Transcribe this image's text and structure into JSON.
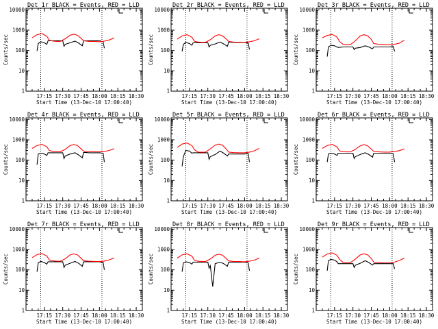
{
  "x_tick_labels": [
    "17:15",
    "17:30",
    "17:45",
    "18:00",
    "18:15",
    "18:30"
  ],
  "y_tick_labels": [
    "1",
    "10",
    "100",
    "1000",
    "10000"
  ],
  "ylabel": "Counts/sec",
  "xlabel": "Start Time (13-Dec-10 17:00:40)",
  "colors": {
    "events": "#000000",
    "lld": "#ff0000",
    "marker": "#000000"
  },
  "chart_data": [
    {
      "type": "line",
      "title": "Det 1r BLACK = Events, RED = LLD",
      "ylim": [
        1,
        12000
      ],
      "yscale": "log",
      "grid": false,
      "x_minutes": [
        0,
        75
      ],
      "series": [
        {
          "color": "#000000",
          "x": [
            4,
            5,
            7,
            10,
            12,
            13,
            17,
            20,
            25,
            26,
            27,
            31,
            35,
            38,
            41,
            42,
            43,
            47,
            51,
            55,
            58,
            59
          ],
          "y": [
            95,
            220,
            270,
            240,
            200,
            300,
            300,
            300,
            300,
            160,
            200,
            240,
            290,
            230,
            170,
            300,
            300,
            300,
            300,
            300,
            270,
            130
          ]
        },
        {
          "color": "#ff0000",
          "x": [
            0,
            4,
            8,
            12,
            14,
            17,
            20,
            23,
            27,
            31,
            34,
            37,
            40,
            42,
            46,
            51,
            55,
            59,
            63,
            67
          ],
          "y": [
            420,
            600,
            680,
            500,
            320,
            290,
            280,
            280,
            380,
            560,
            640,
            560,
            400,
            300,
            280,
            280,
            270,
            290,
            330,
            420
          ]
        }
      ],
      "markers_x": [
        7,
        57
      ]
    },
    {
      "type": "line",
      "title": "Det 2r BLACK = Events, RED = LLD",
      "ylim": [
        1,
        12000
      ],
      "yscale": "log",
      "grid": false,
      "x_minutes": [
        0,
        75
      ],
      "series": [
        {
          "color": "#000000",
          "x": [
            4,
            5,
            7,
            10,
            12,
            13,
            17,
            20,
            25,
            26,
            27,
            31,
            35,
            38,
            41,
            42,
            43,
            47,
            51,
            55,
            58,
            59
          ],
          "y": [
            90,
            200,
            250,
            220,
            180,
            240,
            240,
            240,
            240,
            150,
            180,
            210,
            260,
            210,
            160,
            260,
            260,
            250,
            250,
            250,
            230,
            110
          ]
        },
        {
          "color": "#ff0000",
          "x": [
            0,
            4,
            8,
            12,
            14,
            17,
            20,
            23,
            27,
            31,
            34,
            37,
            40,
            42,
            46,
            51,
            55,
            59,
            63,
            67
          ],
          "y": [
            360,
            520,
            600,
            450,
            290,
            260,
            250,
            250,
            340,
            520,
            600,
            520,
            370,
            280,
            260,
            255,
            250,
            270,
            300,
            380
          ]
        }
      ],
      "markers_x": [
        7,
        57
      ]
    },
    {
      "type": "line",
      "title": "Det 3r BLACK = Events, RED = LLD",
      "ylim": [
        1,
        12000
      ],
      "yscale": "log",
      "grid": false,
      "x_minutes": [
        0,
        75
      ],
      "series": [
        {
          "color": "#000000",
          "x": [
            4,
            5,
            7,
            10,
            12,
            13,
            17,
            20,
            25,
            26,
            27,
            31,
            35,
            38,
            41,
            42,
            43,
            47,
            51,
            55,
            58,
            59
          ],
          "y": [
            50,
            150,
            180,
            170,
            150,
            140,
            150,
            150,
            150,
            110,
            130,
            140,
            170,
            150,
            120,
            150,
            150,
            150,
            150,
            150,
            160,
            90
          ]
        },
        {
          "color": "#ff0000",
          "x": [
            0,
            4,
            8,
            12,
            14,
            17,
            20,
            23,
            27,
            31,
            34,
            37,
            40,
            42,
            46,
            51,
            55,
            59,
            63,
            67
          ],
          "y": [
            420,
            550,
            620,
            460,
            280,
            200,
            195,
            195,
            300,
            520,
            600,
            520,
            350,
            220,
            200,
            195,
            190,
            200,
            230,
            320
          ]
        }
      ],
      "markers_x": [
        7,
        57
      ]
    },
    {
      "type": "line",
      "title": "Det 4r BLACK = Events, RED = LLD",
      "ylim": [
        1,
        12000
      ],
      "yscale": "log",
      "grid": false,
      "x_minutes": [
        0,
        75
      ],
      "series": [
        {
          "color": "#000000",
          "x": [
            4,
            5,
            7,
            10,
            12,
            13,
            17,
            20,
            25,
            26,
            27,
            31,
            35,
            38,
            41,
            42,
            43,
            47,
            51,
            55,
            58,
            59
          ],
          "y": [
            60,
            200,
            220,
            200,
            170,
            230,
            230,
            230,
            230,
            120,
            160,
            200,
            230,
            180,
            130,
            240,
            240,
            230,
            230,
            230,
            220,
            80
          ]
        },
        {
          "color": "#ff0000",
          "x": [
            0,
            4,
            8,
            12,
            14,
            17,
            20,
            23,
            27,
            31,
            34,
            37,
            40,
            42,
            46,
            51,
            55,
            59,
            63,
            67
          ],
          "y": [
            380,
            520,
            600,
            460,
            300,
            270,
            260,
            260,
            340,
            520,
            590,
            520,
            360,
            280,
            265,
            260,
            255,
            270,
            300,
            370
          ]
        }
      ],
      "markers_x": [
        7,
        57
      ]
    },
    {
      "type": "line",
      "title": "Det 5r BLACK = Events, RED = LLD",
      "ylim": [
        1,
        12000
      ],
      "yscale": "log",
      "grid": false,
      "x_minutes": [
        0,
        75
      ],
      "series": [
        {
          "color": "#000000",
          "x": [
            4,
            5,
            7,
            10,
            12,
            13,
            17,
            20,
            25,
            26,
            27,
            31,
            35,
            38,
            41,
            42,
            43,
            47,
            51,
            55,
            58,
            59
          ],
          "y": [
            50,
            150,
            300,
            280,
            220,
            230,
            230,
            230,
            230,
            110,
            150,
            190,
            280,
            220,
            160,
            200,
            200,
            200,
            200,
            200,
            210,
            80
          ]
        },
        {
          "color": "#ff0000",
          "x": [
            0,
            4,
            8,
            12,
            14,
            17,
            20,
            23,
            27,
            31,
            34,
            37,
            40,
            42,
            46,
            51,
            55,
            59,
            63,
            67
          ],
          "y": [
            420,
            620,
            700,
            520,
            330,
            250,
            245,
            245,
            360,
            550,
            620,
            540,
            360,
            250,
            235,
            230,
            230,
            250,
            290,
            380
          ]
        }
      ],
      "markers_x": [
        7,
        57
      ]
    },
    {
      "type": "line",
      "title": "Det 6r BLACK = Events, RED = LLD",
      "ylim": [
        1,
        12000
      ],
      "yscale": "log",
      "grid": false,
      "x_minutes": [
        0,
        75
      ],
      "series": [
        {
          "color": "#000000",
          "x": [
            4,
            5,
            7,
            10,
            12,
            13,
            17,
            20,
            25,
            26,
            27,
            31,
            35,
            38,
            41,
            42,
            43,
            47,
            51,
            55,
            58,
            59
          ],
          "y": [
            80,
            200,
            220,
            200,
            170,
            220,
            220,
            220,
            220,
            120,
            150,
            190,
            230,
            190,
            140,
            220,
            220,
            220,
            220,
            220,
            210,
            80
          ]
        },
        {
          "color": "#ff0000",
          "x": [
            0,
            4,
            8,
            12,
            14,
            17,
            20,
            23,
            27,
            31,
            34,
            37,
            40,
            42,
            46,
            51,
            55,
            59,
            63,
            67
          ],
          "y": [
            380,
            520,
            600,
            450,
            290,
            260,
            255,
            255,
            340,
            510,
            580,
            510,
            350,
            270,
            255,
            250,
            250,
            265,
            295,
            360
          ]
        }
      ],
      "markers_x": [
        7,
        57
      ]
    },
    {
      "type": "line",
      "title": "Det 7r BLACK = Events, RED = LLD",
      "ylim": [
        1,
        12000
      ],
      "yscale": "log",
      "grid": false,
      "x_minutes": [
        0,
        75
      ],
      "series": [
        {
          "color": "#000000",
          "x": [
            4,
            5,
            7,
            10,
            12,
            13,
            17,
            20,
            25,
            26,
            27,
            31,
            35,
            38,
            41,
            42,
            43,
            47,
            51,
            55,
            58,
            59
          ],
          "y": [
            80,
            220,
            260,
            230,
            190,
            250,
            250,
            250,
            250,
            130,
            170,
            210,
            260,
            210,
            150,
            250,
            250,
            250,
            250,
            250,
            230,
            100
          ]
        },
        {
          "color": "#ff0000",
          "x": [
            0,
            4,
            8,
            12,
            14,
            17,
            20,
            23,
            27,
            31,
            34,
            37,
            40,
            42,
            46,
            51,
            55,
            59,
            63,
            67
          ],
          "y": [
            400,
            560,
            640,
            480,
            310,
            275,
            265,
            265,
            350,
            540,
            610,
            540,
            370,
            280,
            265,
            260,
            255,
            270,
            310,
            390
          ]
        }
      ],
      "markers_x": [
        7,
        57
      ]
    },
    {
      "type": "line",
      "title": "Det 8r BLACK = Events, RED = LLD",
      "ylim": [
        1,
        12000
      ],
      "yscale": "log",
      "grid": false,
      "x_minutes": [
        0,
        75
      ],
      "series": [
        {
          "color": "#000000",
          "x": [
            4,
            5,
            7,
            10,
            12,
            13,
            17,
            20,
            25,
            26,
            27,
            29,
            31,
            35,
            38,
            41,
            42,
            43,
            47,
            51,
            55,
            58,
            59
          ],
          "y": [
            80,
            220,
            250,
            230,
            190,
            240,
            240,
            240,
            240,
            120,
            160,
            15,
            200,
            240,
            200,
            150,
            240,
            240,
            240,
            240,
            240,
            220,
            90
          ]
        },
        {
          "color": "#ff0000",
          "x": [
            0,
            4,
            8,
            12,
            14,
            17,
            20,
            23,
            27,
            31,
            34,
            37,
            40,
            42,
            46,
            51,
            55,
            59,
            63,
            67
          ],
          "y": [
            380,
            540,
            620,
            470,
            300,
            265,
            255,
            255,
            340,
            520,
            590,
            520,
            360,
            275,
            260,
            255,
            250,
            265,
            300,
            380
          ]
        }
      ],
      "markers_x": [
        7,
        57
      ]
    },
    {
      "type": "line",
      "title": "Det 9r BLACK = Events, RED = LLD",
      "ylim": [
        1,
        12000
      ],
      "yscale": "log",
      "grid": false,
      "x_minutes": [
        0,
        75
      ],
      "series": [
        {
          "color": "#000000",
          "x": [
            4,
            5,
            7,
            10,
            12,
            13,
            17,
            20,
            25,
            26,
            27,
            31,
            35,
            38,
            41,
            42,
            43,
            47,
            51,
            55,
            58,
            59
          ],
          "y": [
            90,
            280,
            330,
            300,
            250,
            200,
            200,
            200,
            200,
            130,
            170,
            210,
            280,
            230,
            170,
            200,
            200,
            200,
            200,
            200,
            200,
            110
          ]
        },
        {
          "color": "#ff0000",
          "x": [
            0,
            4,
            8,
            12,
            14,
            17,
            20,
            23,
            27,
            31,
            34,
            37,
            40,
            42,
            46,
            51,
            55,
            59,
            63,
            67
          ],
          "y": [
            420,
            600,
            680,
            520,
            330,
            230,
            225,
            225,
            340,
            540,
            620,
            540,
            360,
            240,
            225,
            220,
            220,
            240,
            290,
            380
          ]
        }
      ],
      "markers_x": [
        7,
        57
      ]
    }
  ]
}
